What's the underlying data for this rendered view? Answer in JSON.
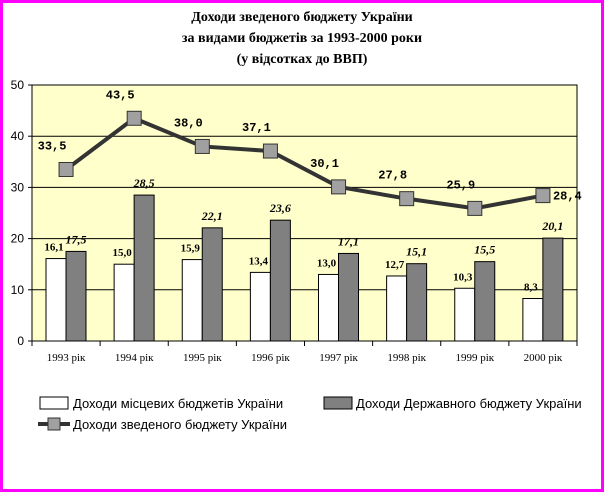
{
  "title_lines": [
    "Доходи зведеного бюджету України",
    "за видами бюджетів за 1993-2000 роки",
    "(у відсотках до ВВП)"
  ],
  "colors": {
    "frame": "#ff00ff",
    "plot_bg": "#ffffcc",
    "local": "#ffffff",
    "state": "#808080",
    "total_line": "#333333",
    "total_marker": "#a0a0a0"
  },
  "chart_data": {
    "type": "bar",
    "categories": [
      "1993 рік",
      "1994 рік",
      "1995 рік",
      "1996 рік",
      "1997 рік",
      "1998 рік",
      "1999 рік",
      "2000 рік"
    ],
    "ylim": [
      0,
      50
    ],
    "yticks": [
      "0",
      "10",
      "20",
      "30",
      "40",
      "50"
    ],
    "series": [
      {
        "name": "Доходи місцевих бюджетів України",
        "type": "bar",
        "values": [
          16.1,
          15.0,
          15.9,
          13.4,
          13.0,
          12.7,
          10.3,
          8.3
        ],
        "labels": [
          "16,1",
          "15,0",
          "15,9",
          "13,4",
          "13,0",
          "12,7",
          "10,3",
          "8,3"
        ]
      },
      {
        "name": "Доходи Державного бюджету України",
        "type": "bar",
        "values": [
          17.5,
          28.5,
          22.1,
          23.6,
          17.1,
          15.1,
          15.5,
          20.1
        ],
        "labels": [
          "17,5",
          "28,5",
          "22,1",
          "23,6",
          "17,1",
          "15,1",
          "15,5",
          "20,1"
        ]
      },
      {
        "name": "Доходи зведеного бюджету України",
        "type": "line",
        "values": [
          33.5,
          43.5,
          38.0,
          37.1,
          30.1,
          27.8,
          25.9,
          28.4
        ],
        "labels": [
          "33,5",
          "43,5",
          "38,0",
          "37,1",
          "30,1",
          "27,8",
          "25,9",
          "28,4"
        ]
      }
    ],
    "legend_position": "bottom",
    "grid": true
  }
}
